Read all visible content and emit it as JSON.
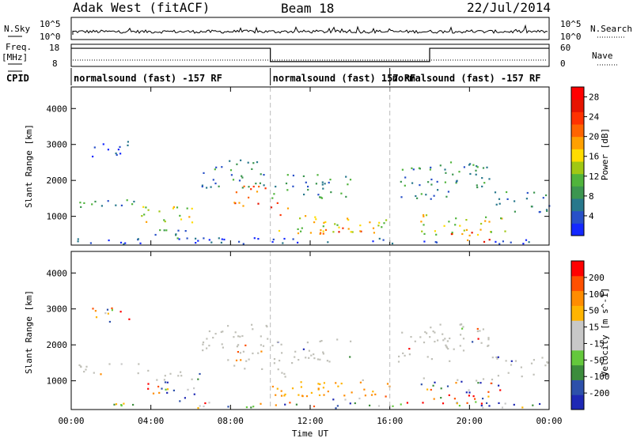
{
  "header": {
    "title": "Adak West (fitACF)",
    "beam": "Beam 18",
    "date": "22/Jul/2014"
  },
  "nsky": {
    "label": "N.Sky",
    "ytick_top": "10^5",
    "ytick_bottom": "10^0",
    "right_label": "N.Search",
    "right_tick_top": "10^5",
    "right_tick_bottom": "10^0"
  },
  "freq": {
    "label_top": "Freq.",
    "label_unit": "[MHz]",
    "ytick_top": "18",
    "ytick_bottom": "8",
    "right_label": "Nave",
    "right_tick_top": "60",
    "right_tick_bottom": "0",
    "segments": [
      {
        "start_h": 0,
        "end_h": 10,
        "level": 0.82
      },
      {
        "start_h": 10,
        "end_h": 18,
        "level": 0.22
      },
      {
        "start_h": 18,
        "end_h": 24,
        "level": 0.82
      }
    ]
  },
  "cpid": {
    "label": "CPID",
    "segments": [
      {
        "start_h": 0,
        "end_h": 10,
        "text": "normalsound (fast) -157 RF"
      },
      {
        "start_h": 10,
        "end_h": 16,
        "text": "normalsound (fast) 157 RF"
      },
      {
        "start_h": 16,
        "end_h": 24,
        "text": "normalsound (fast) -157 RF"
      }
    ]
  },
  "chart_data": [
    {
      "type": "heatmap",
      "ylabel": "Slant Range [km]",
      "ylim": [
        200,
        4600
      ],
      "yticks": [
        "1000",
        "2000",
        "3000",
        "4000"
      ],
      "ytick_values": [
        1000,
        2000,
        3000,
        4000
      ],
      "xlim": [
        0,
        24
      ],
      "colorbar": {
        "label": "Power [dB]",
        "ticks": [
          "4",
          "8",
          "12",
          "16",
          "20",
          "24",
          "28"
        ],
        "tick_values": [
          4,
          8,
          12,
          16,
          20,
          24,
          28
        ],
        "range": [
          0,
          30
        ],
        "colors": [
          "#1428ff",
          "#2850c8",
          "#28788c",
          "#3c9650",
          "#50b43c",
          "#a0c814",
          "#ffdc00",
          "#ffa000",
          "#ff6400",
          "#ff3200",
          "#e61400",
          "#ff0000"
        ]
      }
    },
    {
      "type": "heatmap",
      "ylabel": "Slant Range [km]",
      "xlabel": "Time UT",
      "ylim": [
        200,
        4600
      ],
      "yticks": [
        "1000",
        "2000",
        "3000",
        "4000"
      ],
      "ytick_values": [
        1000,
        2000,
        3000,
        4000
      ],
      "xlim": [
        0,
        24
      ],
      "xticks": [
        "00:00",
        "04:00",
        "08:00",
        "12:00",
        "16:00",
        "20:00",
        "00:00"
      ],
      "xtick_values": [
        0,
        4,
        8,
        12,
        16,
        20,
        24
      ],
      "colorbar": {
        "label": "Velocity [m s^-1]",
        "ticks": [
          "200",
          "100",
          "50",
          "15",
          "-15",
          "-50",
          "-100",
          "-200"
        ],
        "tick_values": [
          200,
          100,
          50,
          15,
          -15,
          -50,
          -100,
          -200
        ],
        "colors": [
          "#1e28b4",
          "#2d50aa",
          "#3c8c3c",
          "#64c83c",
          "#c8c8c8",
          "#c8c8c8",
          "#ffb400",
          "#ff8c00",
          "#ff5000",
          "#ff0000"
        ]
      }
    }
  ],
  "colors": {
    "ground_scatter": "#c0c0b8",
    "dashed": "#bbbbbb"
  }
}
